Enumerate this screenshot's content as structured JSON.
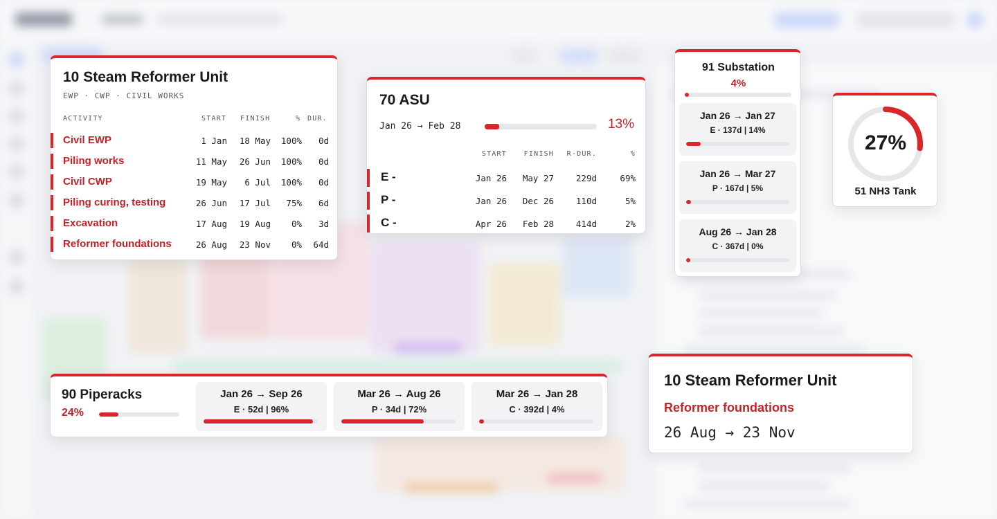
{
  "colors": {
    "accent": "#d8262b",
    "accent_text": "#c42228",
    "track": "#e6e7eb"
  },
  "reformer_card": {
    "title": "10 Steam Reformer Unit",
    "subtitle": "EWP · CWP · CIVIL WORKS",
    "headers": {
      "activity": "ACTIVITY",
      "start": "START",
      "finish": "FINISH",
      "pct": "%",
      "dur": "DUR."
    },
    "rows": [
      {
        "activity": "Civil EWP",
        "start": "1 Jan",
        "finish": "18 May",
        "pct": "100%",
        "dur": "0d"
      },
      {
        "activity": "Piling works",
        "start": "11 May",
        "finish": "26 Jun",
        "pct": "100%",
        "dur": "0d"
      },
      {
        "activity": "Civil CWP",
        "start": "19 May",
        "finish": "6 Jul",
        "pct": "100%",
        "dur": "0d"
      },
      {
        "activity": "Piling curing, testing",
        "start": "26 Jun",
        "finish": "17 Jul",
        "pct": "75%",
        "dur": "6d"
      },
      {
        "activity": "Excavation",
        "start": "17 Aug",
        "finish": "19 Aug",
        "pct": "0%",
        "dur": "3d"
      },
      {
        "activity": "Reformer foundations",
        "start": "26 Aug",
        "finish": "23 Nov",
        "pct": "0%",
        "dur": "64d"
      }
    ]
  },
  "asu_card": {
    "title": "70 ASU",
    "range": "Jan 26 → Feb 28",
    "progress_pct": "13%",
    "progress": 0.13,
    "headers": {
      "start": "START",
      "finish": "FINISH",
      "rdur": "R-DUR.",
      "pct": "%"
    },
    "rows": [
      {
        "label": "E -",
        "start": "Jan 26",
        "finish": "May 27",
        "rdur": "229d",
        "pct": "69%"
      },
      {
        "label": "P -",
        "start": "Jan 26",
        "finish": "Dec 26",
        "rdur": "110d",
        "pct": "5%"
      },
      {
        "label": "C -",
        "start": "Apr 26",
        "finish": "Feb 28",
        "rdur": "414d",
        "pct": "2%"
      }
    ]
  },
  "substation_card": {
    "title": "91 Substation",
    "progress_pct": "4%",
    "progress": 0.04,
    "phases": [
      {
        "range": "Jan 26 → Jan 27",
        "detail": "E · 137d | 14%",
        "progress": 0.14
      },
      {
        "range": "Jan 26 → Mar 27",
        "detail": "P · 167d | 5%",
        "progress": 0.05
      },
      {
        "range": "Aug 26 → Jan 28",
        "detail": "C · 367d | 0%",
        "progress": 0.0
      }
    ]
  },
  "tank_card": {
    "progress_pct": "27%",
    "progress": 0.27,
    "name": "51 NH3 Tank"
  },
  "piperacks_card": {
    "title": "90 Piperacks",
    "progress_pct": "24%",
    "progress": 0.24,
    "phases": [
      {
        "range": "Jan 26 → Sep 26",
        "detail": "E · 52d | 96%",
        "progress": 0.96
      },
      {
        "range": "Mar 26 → Aug 26",
        "detail": "P · 34d | 72%",
        "progress": 0.72
      },
      {
        "range": "Mar 26 → Jan 28",
        "detail": "C · 392d | 4%",
        "progress": 0.04
      }
    ]
  },
  "activity_detail_card": {
    "title": "10 Steam Reformer Unit",
    "activity": "Reformer foundations",
    "range": "26 Aug → 23 Nov"
  }
}
